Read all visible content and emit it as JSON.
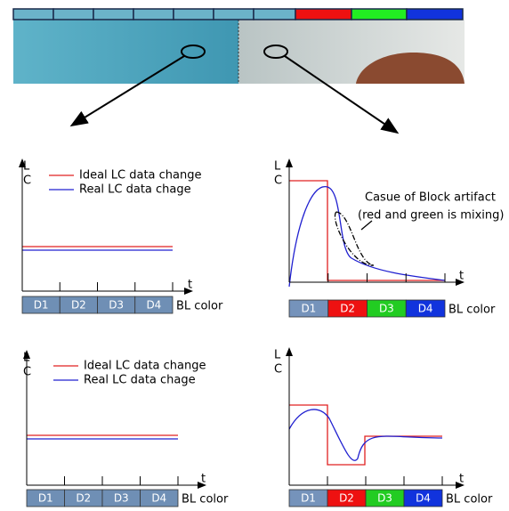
{
  "panels": [
    {
      "axis_label_top": "L",
      "axis_label_bottom": "C",
      "x_label": "t",
      "legend": [
        "Ideal LC data change",
        "Real LC data chage"
      ],
      "segments": [
        "D1",
        "D2",
        "D3",
        "D4"
      ],
      "segment_caption": "BL color"
    },
    {
      "axis_label_top": "L",
      "axis_label_bottom": "C",
      "x_label": "t",
      "annotation": [
        "Casue of Block artifact",
        "(red and green is mixing)"
      ],
      "segments": [
        "D1",
        "D2",
        "D3",
        "D4"
      ],
      "segment_caption": "BL color"
    },
    {
      "axis_label_top": "L",
      "axis_label_bottom": "C",
      "x_label": "t",
      "legend": [
        "Ideal LC data change",
        "Real LC data chage"
      ],
      "segments": [
        "D1",
        "D2",
        "D3",
        "D4"
      ],
      "segment_caption": "BL color"
    },
    {
      "axis_label_top": "L",
      "axis_label_bottom": "C",
      "x_label": "t",
      "segments": [
        "D1",
        "D2",
        "D3",
        "D4"
      ],
      "segment_caption": "BL color"
    }
  ]
}
